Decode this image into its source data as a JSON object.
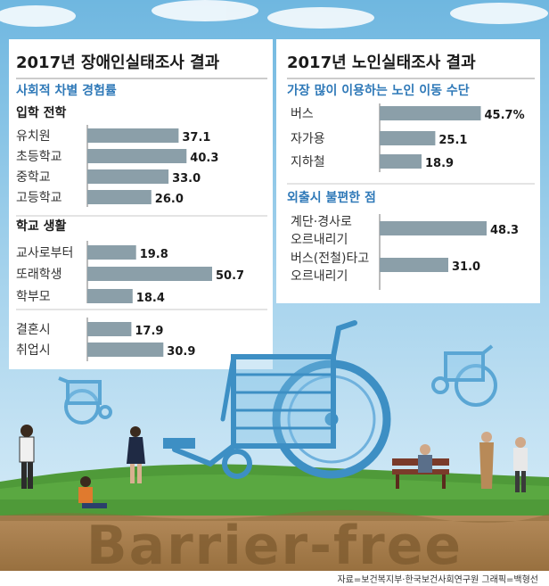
{
  "left_panel": {
    "title": "2017년 장애인실태조사 결과",
    "subtitle": "사회적 차별 경험률",
    "groups": [
      {
        "heading": "입학 전학",
        "items": [
          {
            "label": "유치원",
            "value": 37.1
          },
          {
            "label": "초등학교",
            "value": 40.3
          },
          {
            "label": "중학교",
            "value": 33.0
          },
          {
            "label": "고등학교",
            "value": 26.0
          }
        ]
      },
      {
        "heading": "학교 생활",
        "items": [
          {
            "label": "교사로부터",
            "value": 19.8
          },
          {
            "label": "또래학생",
            "value": 50.7
          },
          {
            "label": "학부모",
            "value": 18.4
          }
        ]
      },
      {
        "heading": "",
        "items": [
          {
            "label": "결혼시",
            "value": 17.9
          },
          {
            "label": "취업시",
            "value": 30.9
          }
        ]
      }
    ]
  },
  "right_panel": {
    "title": "2017년 노인실태조사 결과",
    "section1": {
      "subtitle": "가장 많이 이용하는 노인 이동 수단",
      "items": [
        {
          "label": "버스",
          "value": 45.7,
          "value_text": "45.7%"
        },
        {
          "label": "자가용",
          "value": 25.1,
          "value_text": "25.1"
        },
        {
          "label": "지하철",
          "value": 18.9,
          "value_text": "18.9"
        }
      ]
    },
    "section2": {
      "subtitle": "외출시 불편한 점",
      "items": [
        {
          "label_lines": [
            "계단·경사로",
            "오르내리기"
          ],
          "value": 48.3,
          "value_text": "48.3"
        },
        {
          "label_lines": [
            "버스(전철)타고",
            "오르내리기"
          ],
          "value": 31.0,
          "value_text": "31.0"
        }
      ]
    }
  },
  "chart_data": [
    {
      "type": "bar",
      "title": "2017년 장애인실태조사 결과",
      "subtitle": "사회적 차별 경험률",
      "categories": [
        "유치원",
        "초등학교",
        "중학교",
        "고등학교",
        "교사로부터",
        "또래학생",
        "학부모",
        "결혼시",
        "취업시"
      ],
      "values": [
        37.1,
        40.3,
        33.0,
        26.0,
        19.8,
        50.7,
        18.4,
        17.9,
        30.9
      ]
    },
    {
      "type": "bar",
      "title": "2017년 노인실태조사 결과",
      "subtitle": "가장 많이 이용하는 노인 이동 수단",
      "categories": [
        "버스",
        "자가용",
        "지하철"
      ],
      "values": [
        45.7,
        25.1,
        18.9
      ]
    },
    {
      "type": "bar",
      "subtitle": "외출시 불편한 점",
      "categories": [
        "계단·경사로 오르내리기",
        "버스(전철)타고 오르내리기"
      ],
      "values": [
        48.3,
        31.0
      ]
    }
  ],
  "illustration": {
    "banner_text": "Barrier-free"
  },
  "credits": "자료=보건복지부·한국보건사회연구원   그래픽=백형선",
  "colors": {
    "sky_top": "#6fb7e0",
    "sky_bottom": "#d4ecf8",
    "bar": "#8b9fa9",
    "accent_blue": "#2f79b8",
    "grass": "#4f9a39",
    "soil": "#a87d4e",
    "wheelchair": "#3d8fc4"
  }
}
